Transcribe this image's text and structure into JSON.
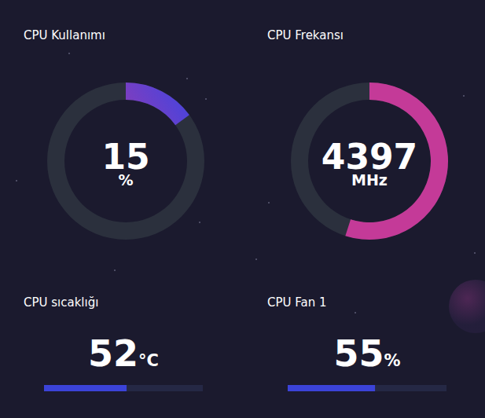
{
  "chart_data": [
    {
      "type": "gauge",
      "title": "CPU Kullanımı",
      "value": 15,
      "unit": "%",
      "ylim": [
        0,
        100
      ],
      "tick_labels": false
    },
    {
      "type": "gauge",
      "title": "CPU Frekansı",
      "value": 4397,
      "unit": "MHz",
      "ylim": [
        0,
        8000
      ],
      "tick_labels": false
    },
    {
      "type": "progress",
      "title": "CPU sıcaklığı",
      "value": 52,
      "unit": "°C",
      "ylim": [
        0,
        100
      ],
      "tick_labels": false,
      "color": "#3b43d8"
    },
    {
      "type": "progress",
      "title": "CPU Fan 1",
      "value": 55,
      "unit": "%",
      "ylim": [
        0,
        100
      ],
      "tick_labels": false,
      "color": "#3b43d8"
    }
  ]
}
